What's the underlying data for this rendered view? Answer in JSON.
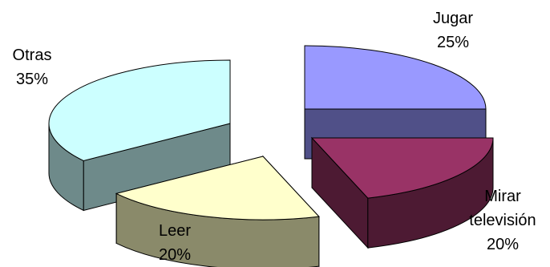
{
  "chart_data": {
    "type": "pie",
    "title": "",
    "slices": [
      {
        "name": "Jugar",
        "value": 25,
        "label": "25%",
        "color": "#9999ff",
        "side_color": "#505088"
      },
      {
        "name": "Mirar televisión",
        "value": 20,
        "label": "20%",
        "color": "#993366",
        "side_color": "#4d1a33"
      },
      {
        "name": "Leer",
        "value": 20,
        "label": "20%",
        "color": "#ffffcc",
        "side_color": "#8a8a6a"
      },
      {
        "name": "Otras",
        "value": 35,
        "label": "35%",
        "color": "#ccffff",
        "side_color": "#6e8a8a"
      }
    ],
    "exploded": true,
    "three_d": true,
    "legend": "none"
  }
}
